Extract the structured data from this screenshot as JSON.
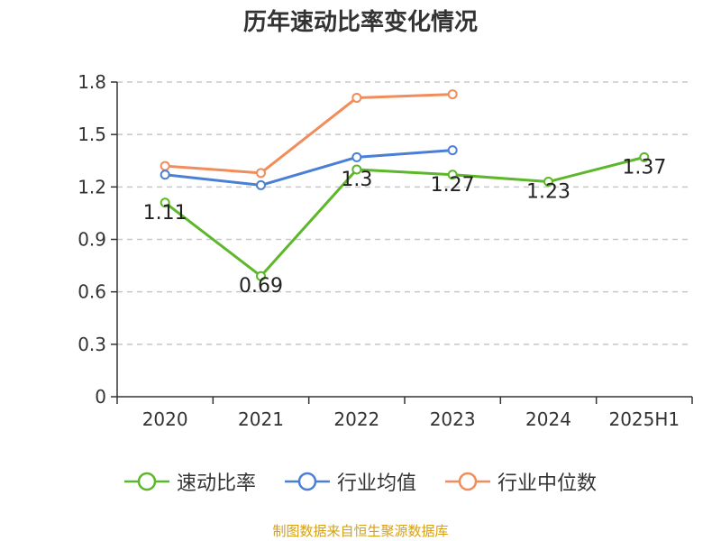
{
  "chart_data": {
    "type": "line",
    "title": "历年速动比率变化情况",
    "categories": [
      "2020",
      "2021",
      "2022",
      "2023",
      "2024",
      "2025H1"
    ],
    "ylim": [
      0,
      1.8
    ],
    "yticks": [
      "0",
      "0.3",
      "0.6",
      "0.9",
      "1.2",
      "1.5",
      "1.8"
    ],
    "grid": true,
    "legend_position": "bottom",
    "series": [
      {
        "name": "速动比率",
        "color": "#5cb82a",
        "values": [
          1.11,
          0.69,
          1.3,
          1.27,
          1.23,
          1.37
        ],
        "labels": [
          "1.11",
          "0.69",
          "1.3",
          "1.27",
          "1.23",
          "1.37"
        ]
      },
      {
        "name": "行业均值",
        "color": "#4a7fd6",
        "values": [
          1.27,
          1.21,
          1.37,
          1.41,
          null,
          null
        ]
      },
      {
        "name": "行业中位数",
        "color": "#f28c5a",
        "values": [
          1.32,
          1.28,
          1.71,
          1.73,
          null,
          null
        ]
      }
    ]
  },
  "source": "制图数据来自恒生聚源数据库"
}
